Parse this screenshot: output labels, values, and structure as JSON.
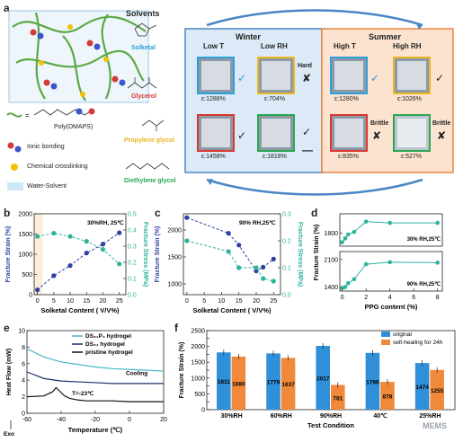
{
  "panel_labels": {
    "a": "a",
    "b": "b",
    "c": "c",
    "d": "d",
    "e": "e",
    "f": "f"
  },
  "panel_a": {
    "polymer_label": "Poly(DMAPS)",
    "legend": [
      {
        "text": "Ionic bonding",
        "color": "#d33a3a"
      },
      {
        "text": "Chemical crosslinking",
        "color": "#f2c200"
      },
      {
        "text": "Water-Solvent",
        "color": "#9fd0ee"
      }
    ],
    "solvents_title": "Solvents",
    "solvents": [
      {
        "name": "Solketal",
        "color": "#2b9fd9"
      },
      {
        "name": "Glycerol",
        "color": "#d8382f"
      },
      {
        "name": "Propylene glycol",
        "color": "#e9b820"
      },
      {
        "name": "Diethylene glycol",
        "color": "#2aa652"
      }
    ],
    "winter": {
      "title": "Winter",
      "col1": "Low T",
      "col2": "Low RH",
      "samples": [
        {
          "strain": "ε:1288%",
          "mark": "✓",
          "color": "#2b9fd9"
        },
        {
          "strain": "ε:704%",
          "mark": "✘",
          "note": "Hard",
          "color": "#e9b820"
        },
        {
          "strain": "ε:1458%",
          "mark": "✓",
          "color": "#d8382f"
        },
        {
          "strain": "ε:1818%",
          "mark": "✓",
          "color": "#2aa652"
        }
      ],
      "dash": "—"
    },
    "summer": {
      "title": "Summer",
      "col1": "High T",
      "col2": "High RH",
      "samples": [
        {
          "strain": "ε:1280%",
          "mark": "✓",
          "color": "#2b9fd9"
        },
        {
          "strain": "ε:1026%",
          "mark": "✓",
          "color": "#e9b820"
        },
        {
          "strain": "ε:835%",
          "mark": "✘",
          "note": "Brittle",
          "color": "#d8382f"
        },
        {
          "strain": "ε:527%",
          "mark": "✘",
          "note": "Brittle",
          "color": "#2aa652"
        }
      ]
    }
  },
  "chart_data": [
    {
      "id": "b",
      "type": "scatter",
      "annotation": "30%RH, 25℃",
      "xlabel": "Solketal Content ( V/V%)",
      "ylabel": "Fracture Strain (%)",
      "y2label": "Fracture Stress (MPa)",
      "xlim": [
        -1,
        27
      ],
      "ylim": [
        0,
        2000
      ],
      "y2lim": [
        0,
        0.5
      ],
      "xticks": [
        0,
        5,
        10,
        15,
        20,
        25
      ],
      "yticks": [
        0,
        500,
        1000,
        1500,
        2000
      ],
      "y2ticks": [
        0.0,
        0.1,
        0.2,
        0.3,
        0.4,
        0.5
      ],
      "series": [
        {
          "axis": "left",
          "color": "#2e3f9e",
          "x": [
            0,
            5,
            10,
            15,
            20,
            25
          ],
          "y": [
            120,
            470,
            720,
            1030,
            1250,
            1530
          ]
        },
        {
          "axis": "right",
          "color": "#2bb39c",
          "x": [
            0,
            5,
            10,
            15,
            20,
            25
          ],
          "y": [
            0.36,
            0.38,
            0.36,
            0.33,
            0.28,
            0.19
          ]
        }
      ]
    },
    {
      "id": "c",
      "type": "scatter",
      "annotation": "90% RH,25℃",
      "xlabel": "Solketal Content ( V/V%)",
      "ylabel": "Fracture Strain (%)",
      "y2label": "Fracture Stress (MPa)",
      "xlim": [
        -1,
        27
      ],
      "ylim": [
        800,
        2300
      ],
      "y2lim": [
        0,
        0.3
      ],
      "xticks": [
        0,
        5,
        10,
        15,
        20,
        25
      ],
      "yticks": [
        1000,
        1500,
        2000
      ],
      "y2ticks": [
        0.0,
        0.1,
        0.2,
        0.3
      ],
      "series": [
        {
          "axis": "left",
          "color": "#2e3f9e",
          "x": [
            0,
            12,
            15,
            20,
            22,
            25
          ],
          "y": [
            2230,
            1940,
            1720,
            1240,
            1310,
            1460
          ]
        },
        {
          "axis": "right",
          "color": "#2bb39c",
          "x": [
            0,
            12,
            15,
            20,
            22,
            25
          ],
          "y": [
            0.2,
            0.16,
            0.1,
            0.1,
            0.06,
            0.05
          ]
        }
      ]
    },
    {
      "id": "d1",
      "type": "line",
      "annotation": "30% RH,25℃",
      "ylabel": "Fracture Strain (%)",
      "xlim": [
        -0.2,
        8.4
      ],
      "ylim": [
        1700,
        1950
      ],
      "yticks": [
        1800
      ],
      "series": [
        {
          "color": "#2bb39c",
          "x": [
            0,
            0.25,
            0.5,
            1,
            2,
            4,
            8
          ],
          "y": [
            1730,
            1760,
            1790,
            1810,
            1890,
            1880,
            1880
          ]
        }
      ]
    },
    {
      "id": "d2",
      "type": "line",
      "annotation": "90% RH,25℃",
      "xlabel": "PPG content (%)",
      "xlim": [
        -0.2,
        8.4
      ],
      "ylim": [
        1300,
        2300
      ],
      "xticks": [
        0,
        2,
        4,
        6,
        8
      ],
      "yticks": [
        1400,
        2100
      ],
      "series": [
        {
          "color": "#2bb39c",
          "x": [
            0,
            0.25,
            0.5,
            1,
            2,
            4,
            8
          ],
          "y": [
            1380,
            1400,
            1500,
            1600,
            1980,
            2030,
            2020
          ]
        }
      ]
    },
    {
      "id": "e",
      "type": "line",
      "xlabel": "Temperature (℃)",
      "ylabel": "Heat Flow (mW)",
      "xlim": [
        -60,
        20
      ],
      "ylim": [
        0,
        10
      ],
      "xticks": [
        -60,
        -40,
        -20,
        0,
        20
      ],
      "yticks": [
        0,
        2,
        4,
        6,
        8,
        10
      ],
      "exo_label": "Exo",
      "cooling_label": "Cooling",
      "annotation": "T=-23℃",
      "series": [
        {
          "name": "DS₂₁P₂ hydrogel",
          "color": "#46b9c8",
          "x": [
            -60,
            -50,
            -40,
            -30,
            -20,
            -10,
            0,
            10,
            20
          ],
          "y": [
            7.8,
            6.8,
            6.2,
            5.9,
            5.6,
            5.4,
            5.3,
            5.2,
            5.1
          ]
        },
        {
          "name": "DS₂₁ hydrogel",
          "color": "#1d2f6f",
          "x": [
            -60,
            -50,
            -40,
            -30,
            -20,
            -10,
            0,
            10,
            20
          ],
          "y": [
            5.0,
            4.2,
            3.9,
            3.8,
            3.7,
            3.6,
            3.6,
            3.6,
            3.6
          ]
        },
        {
          "name": "pristine hydrogel",
          "color": "#111111",
          "x": [
            -60,
            -50,
            -45,
            -43,
            -40,
            -38,
            -35,
            -30,
            -25,
            -20,
            -10,
            0,
            10,
            20
          ],
          "y": [
            2.0,
            2.1,
            2.6,
            3.1,
            2.5,
            2.1,
            1.8,
            1.6,
            1.5,
            1.5,
            1.5,
            1.4,
            1.4,
            1.4
          ]
        }
      ]
    },
    {
      "id": "f",
      "type": "bar",
      "xlabel": "Test Condition",
      "ylabel": "Fracture Strain (%)",
      "ylim": [
        0,
        2500
      ],
      "yticks": [
        0,
        250,
        500,
        750,
        1000,
        1250,
        1500,
        1750,
        2000,
        2250,
        2500
      ],
      "categories": [
        "30%RH",
        "60%RH",
        "90%RH",
        "40℃",
        "25%RH"
      ],
      "series": [
        {
          "name": "original",
          "color": "#2f8fd8",
          "values": [
            1811,
            1779,
            2017,
            1796,
            1474
          ],
          "labels": [
            "1811",
            "1779",
            "2017",
            "1796",
            "1474"
          ]
        },
        {
          "name": "self-healing for 24h",
          "color": "#f08a3a",
          "values": [
            1680,
            1637,
            781,
            878,
            1255
          ],
          "labels": [
            "1680",
            "1637",
            "781",
            "878",
            "1255"
          ]
        }
      ]
    }
  ],
  "watermark": "MEMS"
}
